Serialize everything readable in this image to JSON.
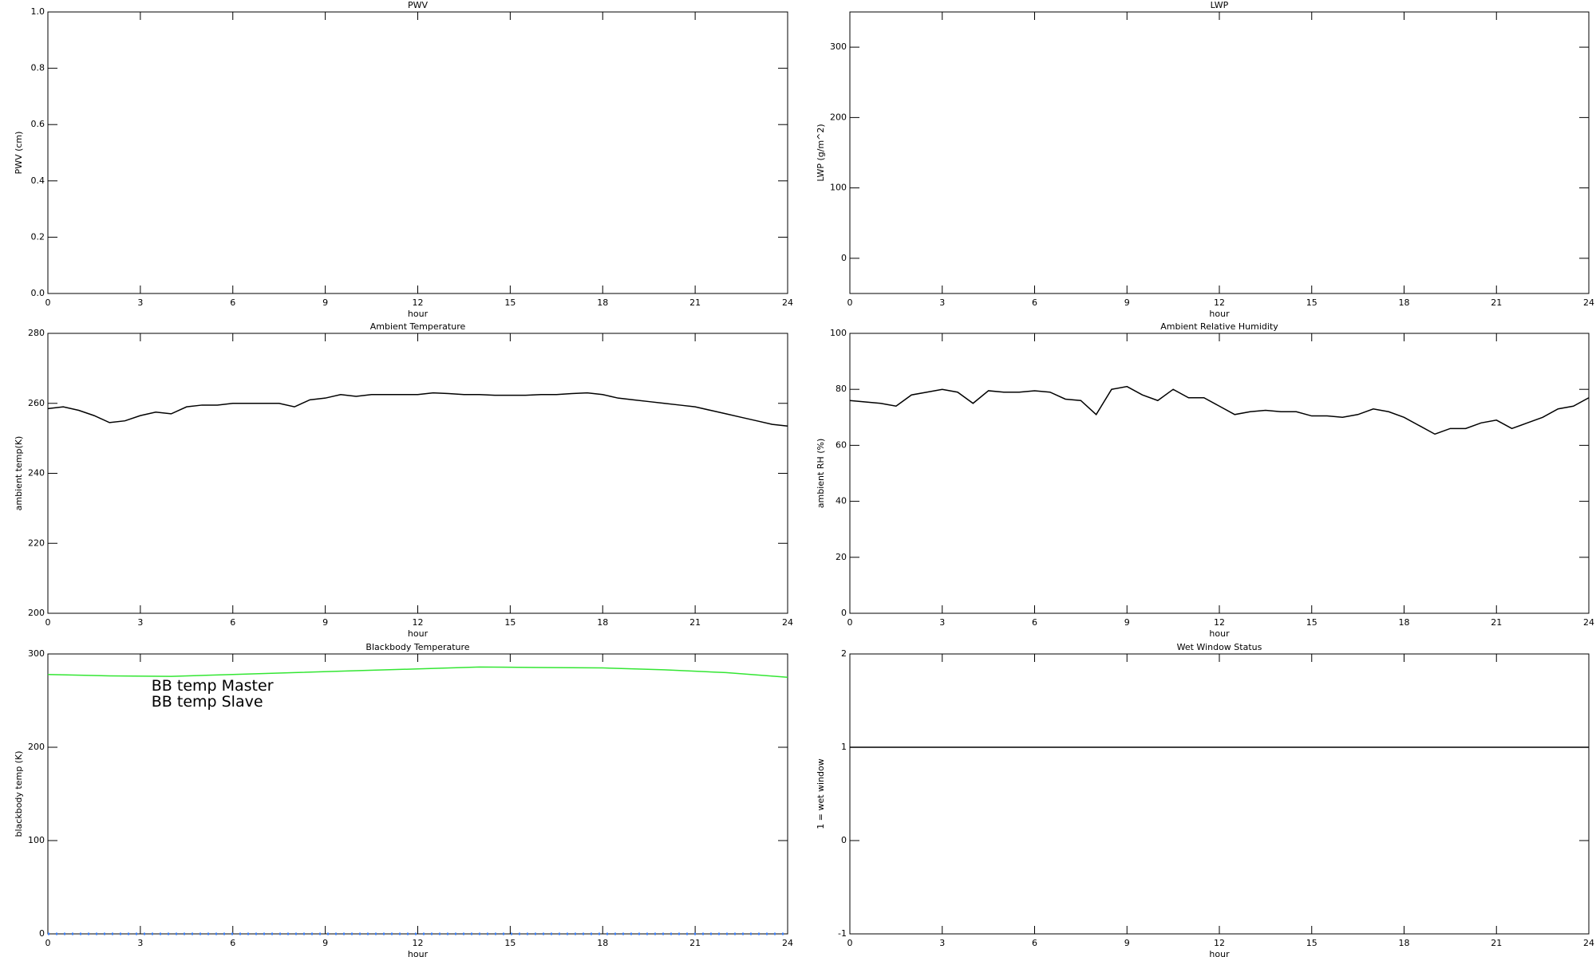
{
  "chart_data": [
    {
      "type": "line",
      "title": "PWV",
      "xlabel": "hour",
      "ylabel": "PWV (cm)",
      "xlim": [
        0,
        24
      ],
      "xticks": [
        0,
        3,
        6,
        9,
        12,
        15,
        18,
        21,
        24
      ],
      "ylim": [
        0,
        1
      ],
      "yticks": [
        {
          "value": 0,
          "label": "0.0"
        },
        0.2,
        0.4,
        0.6,
        0.8,
        {
          "value": 1,
          "label": "1.0"
        }
      ]
    },
    {
      "type": "line",
      "title": "LWP",
      "xlabel": "hour",
      "ylabel": "LWP (g/m^2)",
      "xlim": [
        0,
        24
      ],
      "xticks": [
        0,
        3,
        6,
        9,
        12,
        15,
        18,
        21,
        24
      ],
      "ylim": [
        -50,
        350
      ],
      "yticks": [
        0,
        100,
        200,
        300
      ]
    },
    {
      "type": "line",
      "title": "Ambient Temperature",
      "xlabel": "hour",
      "ylabel": "ambient temp(K)",
      "xlim": [
        0,
        24
      ],
      "xticks": [
        0,
        3,
        6,
        9,
        12,
        15,
        18,
        21,
        24
      ],
      "ylim": [
        200,
        280
      ],
      "yticks": [
        200,
        220,
        240,
        260,
        280
      ],
      "color": "#000000",
      "x": [
        0,
        0.5,
        1,
        1.5,
        2,
        2.5,
        3,
        3.5,
        4,
        4.5,
        5,
        5.5,
        6,
        6.5,
        7,
        7.5,
        8,
        8.5,
        9,
        9.5,
        10,
        10.5,
        11,
        11.5,
        12,
        12.5,
        13,
        13.5,
        14,
        14.5,
        15,
        15.5,
        16,
        16.5,
        17,
        17.5,
        18,
        18.5,
        19,
        19.5,
        20,
        20.5,
        21,
        21.5,
        22,
        22.5,
        23,
        23.5,
        24
      ],
      "values": [
        258.5,
        259,
        258,
        256.5,
        254.5,
        255,
        256.5,
        257.5,
        257,
        259,
        259.5,
        259.5,
        260,
        260,
        260,
        260,
        259,
        261,
        261.5,
        262.5,
        262,
        262.5,
        262.5,
        262.5,
        262.5,
        263,
        262.8,
        262.5,
        262.5,
        262.3,
        262.3,
        262.3,
        262.5,
        262.5,
        262.8,
        263,
        262.5,
        261.5,
        261,
        260.5,
        260,
        259.5,
        259,
        258,
        257,
        256,
        255,
        254,
        253.5
      ]
    },
    {
      "type": "line",
      "title": "Ambient Relative Humidity",
      "xlabel": "hour",
      "ylabel": "ambient RH (%)",
      "xlim": [
        0,
        24
      ],
      "xticks": [
        0,
        3,
        6,
        9,
        12,
        15,
        18,
        21,
        24
      ],
      "ylim": [
        0,
        100
      ],
      "yticks": [
        0,
        20,
        40,
        60,
        80,
        100
      ],
      "color": "#000000",
      "x": [
        0,
        0.5,
        1,
        1.5,
        2,
        2.5,
        3,
        3.5,
        4,
        4.5,
        5,
        5.5,
        6,
        6.5,
        7,
        7.5,
        8,
        8.5,
        9,
        9.5,
        10,
        10.5,
        11,
        11.5,
        12,
        12.5,
        13,
        13.5,
        14,
        14.5,
        15,
        15.5,
        16,
        16.5,
        17,
        17.5,
        18,
        18.5,
        19,
        19.5,
        20,
        20.5,
        21,
        21.5,
        22,
        22.5,
        23,
        23.5,
        24
      ],
      "values": [
        76,
        75.5,
        75,
        74,
        78,
        79,
        80,
        79,
        75,
        79.5,
        79,
        79,
        79.5,
        79,
        76.5,
        76,
        71,
        80,
        81,
        78,
        76,
        80,
        77,
        77,
        74,
        71,
        72,
        72.5,
        72,
        72,
        70.5,
        70.5,
        70,
        71,
        73,
        72,
        70,
        67,
        64,
        66,
        66,
        68,
        69,
        66,
        68,
        70,
        73,
        74,
        77
      ]
    },
    {
      "type": "line",
      "title": "Blackbody Temperature",
      "xlabel": "hour",
      "ylabel": "blackbody temp (K)",
      "xlim": [
        0,
        24
      ],
      "xticks": [
        0,
        3,
        6,
        9,
        12,
        15,
        18,
        21,
        24
      ],
      "ylim": [
        0,
        300
      ],
      "yticks": [
        0,
        100,
        200,
        300
      ],
      "legend": "upper left",
      "x": [
        0,
        2,
        4,
        6,
        8,
        10,
        12,
        14,
        16,
        18,
        20,
        22,
        24
      ],
      "series": [
        {
          "name": "BB temp Master",
          "color": "#3a7fff",
          "style": "dotted",
          "values": [
            0,
            0,
            0,
            0,
            0,
            0,
            0,
            0,
            0,
            0,
            0,
            0,
            0
          ]
        },
        {
          "name": "BB temp Slave",
          "color": "#33e633",
          "style": "solid",
          "values": [
            278,
            276.5,
            276,
            278,
            280,
            282,
            284,
            286,
            285.5,
            285,
            283,
            280,
            275
          ]
        }
      ]
    },
    {
      "type": "line",
      "title": "Wet Window Status",
      "xlabel": "hour",
      "ylabel": "1 = wet window",
      "xlim": [
        0,
        24
      ],
      "xticks": [
        0,
        3,
        6,
        9,
        12,
        15,
        18,
        21,
        24
      ],
      "ylim": [
        -1,
        2
      ],
      "yticks": [
        -1,
        0,
        1,
        2
      ],
      "color": "#000000",
      "x": [
        0,
        24
      ],
      "values": [
        1,
        1
      ]
    }
  ]
}
